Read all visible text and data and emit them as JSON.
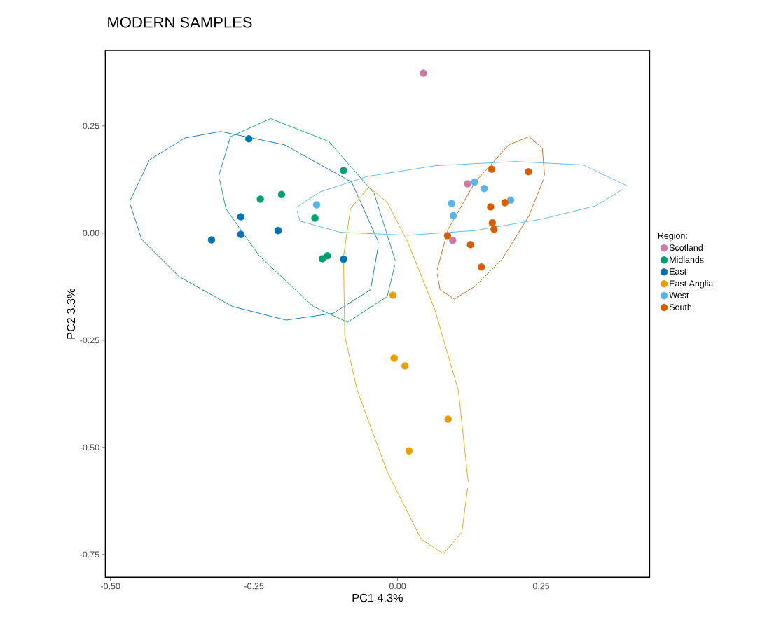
{
  "chart_data": {
    "type": "scatter",
    "title": "MODERN SAMPLES",
    "xlabel": "PC1 4.3%",
    "ylabel": "PC2 3.3%",
    "legend_title": "Region:",
    "legend": "right",
    "xlim": [
      -0.509,
      0.439
    ],
    "ylim": [
      -0.803,
      0.426
    ],
    "xticks": [
      {
        "value": -0.5,
        "label": "-0.50"
      },
      {
        "value": -0.25,
        "label": "-0.25"
      },
      {
        "value": 0,
        "label": "0.00"
      },
      {
        "value": 0.25,
        "label": "0.25"
      }
    ],
    "yticks": [
      {
        "value": -0.75,
        "label": "-0.75"
      },
      {
        "value": -0.5,
        "label": "-0.50"
      },
      {
        "value": -0.25,
        "label": "-0.25"
      },
      {
        "value": 0,
        "label": "0.00"
      },
      {
        "value": 0.25,
        "label": "0.25"
      }
    ],
    "series": [
      {
        "name": "Scotland",
        "marker": "circle",
        "color": "#cc79a7",
        "x": [
          0.045,
          0.122,
          0.096
        ],
        "values": [
          0.373,
          0.115,
          -0.017
        ]
      },
      {
        "name": "Midlands",
        "marker": "circle",
        "color": "#009e73",
        "x": [
          -0.239,
          -0.202,
          -0.094,
          -0.144,
          -0.131,
          -0.122
        ],
        "values": [
          0.079,
          0.09,
          0.146,
          0.035,
          -0.06,
          -0.053
        ]
      },
      {
        "name": "East",
        "marker": "circle",
        "color": "#0072b2",
        "x": [
          -0.259,
          -0.324,
          -0.273,
          -0.273,
          -0.208,
          -0.094
        ],
        "values": [
          0.22,
          -0.016,
          0.038,
          -0.003,
          0.006,
          -0.061
        ]
      },
      {
        "name": "East Anglia",
        "marker": "circle",
        "color": "#e69f00",
        "x": [
          -0.008,
          -0.006,
          0.013,
          0.088,
          0.02
        ],
        "values": [
          -0.145,
          -0.292,
          -0.31,
          -0.434,
          -0.508
        ]
      },
      {
        "name": "West",
        "marker": "circle",
        "color": "#56b4e9",
        "x": [
          -0.141,
          0.134,
          0.151,
          0.094,
          0.097,
          0.197
        ],
        "values": [
          0.066,
          0.119,
          0.104,
          0.069,
          0.041,
          0.077
        ]
      },
      {
        "name": "South",
        "marker": "circle",
        "color": "#d55e00",
        "x": [
          0.164,
          0.228,
          0.162,
          0.187,
          0.165,
          0.168,
          0.087,
          0.127,
          0.146
        ],
        "values": [
          0.149,
          0.143,
          0.061,
          0.071,
          0.024,
          0.009,
          -0.006,
          -0.027,
          -0.079
        ]
      },
      {
        "type": "line",
        "marker": "none",
        "color": "#009e73",
        "x": [
          -0.311,
          -0.291,
          -0.221,
          -0.12,
          -0.041,
          -0.004
        ],
        "values": [
          0.135,
          0.225,
          0.267,
          0.214,
          0.093,
          -0.064
        ]
      },
      {
        "type": "line",
        "marker": "none",
        "color": "#009e73",
        "x": [
          -0.31,
          -0.299,
          -0.241,
          -0.147,
          -0.087,
          -0.018,
          -0.005
        ],
        "values": [
          0.125,
          0.057,
          -0.053,
          -0.171,
          -0.208,
          -0.148,
          -0.075
        ]
      },
      {
        "type": "line",
        "marker": "none",
        "color": "#0072b2",
        "x": [
          -0.466,
          -0.432,
          -0.37,
          -0.308,
          -0.197,
          -0.08,
          -0.033
        ],
        "values": [
          0.075,
          0.171,
          0.222,
          0.237,
          0.206,
          0.119,
          -0.022
        ]
      },
      {
        "type": "line",
        "marker": "none",
        "color": "#0072b2",
        "x": [
          -0.465,
          -0.446,
          -0.381,
          -0.288,
          -0.194,
          -0.112,
          -0.047,
          -0.034
        ],
        "values": [
          0.065,
          -0.014,
          -0.101,
          -0.171,
          -0.203,
          -0.187,
          -0.132,
          -0.033
        ]
      },
      {
        "type": "line",
        "marker": "none",
        "color": "#e69f00",
        "x": [
          -0.094,
          -0.082,
          -0.05,
          -0.018,
          0.018,
          0.065,
          0.106,
          0.123
        ],
        "values": [
          -0.053,
          0.057,
          0.107,
          0.072,
          -0.022,
          -0.179,
          -0.368,
          -0.58
        ]
      },
      {
        "type": "line",
        "marker": "none",
        "color": "#e69f00",
        "x": [
          -0.094,
          -0.092,
          -0.07,
          -0.018,
          0.041,
          0.08,
          0.112,
          0.122
        ],
        "values": [
          -0.065,
          -0.24,
          -0.368,
          -0.557,
          -0.714,
          -0.748,
          -0.698,
          -0.595
        ]
      },
      {
        "type": "line",
        "marker": "none",
        "color": "#56b4e9",
        "x": [
          -0.176,
          -0.135,
          -0.053,
          0.065,
          0.205,
          0.323,
          0.4
        ],
        "values": [
          0.06,
          0.096,
          0.132,
          0.157,
          0.167,
          0.159,
          0.11
        ]
      },
      {
        "type": "line",
        "marker": "none",
        "color": "#56b4e9",
        "x": [
          -0.175,
          -0.17,
          -0.1,
          0.018,
          0.135,
          0.252,
          0.346,
          0.392
        ],
        "values": [
          0.052,
          0.028,
          0.002,
          -0.005,
          0.006,
          0.033,
          0.064,
          0.102
        ]
      },
      {
        "type": "line",
        "marker": "none",
        "color": "#d55e00",
        "x": [
          0.069,
          0.088,
          0.135,
          0.194,
          0.229,
          0.252,
          0.256
        ],
        "values": [
          -0.085,
          0.009,
          0.119,
          0.206,
          0.225,
          0.198,
          0.135
        ]
      },
      {
        "type": "line",
        "marker": "none",
        "color": "#d55e00",
        "x": [
          0.069,
          0.074,
          0.099,
          0.135,
          0.182,
          0.229,
          0.254
        ],
        "values": [
          -0.095,
          -0.132,
          -0.154,
          -0.124,
          -0.061,
          0.041,
          0.125
        ]
      }
    ]
  }
}
